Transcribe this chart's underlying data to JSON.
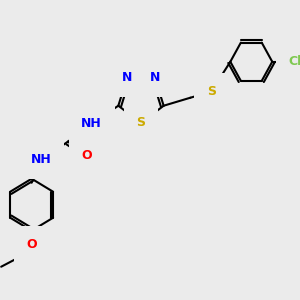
{
  "background_color": "#ebebeb",
  "atom_colors": {
    "N": "#0000ff",
    "S": "#ccaa00",
    "O": "#ff0000",
    "Cl": "#7ec850",
    "C": "#000000",
    "H": "#4aacac"
  },
  "bond_color": "#000000",
  "bond_width": 1.5,
  "figsize": [
    3.0,
    3.0
  ],
  "dpi": 100
}
